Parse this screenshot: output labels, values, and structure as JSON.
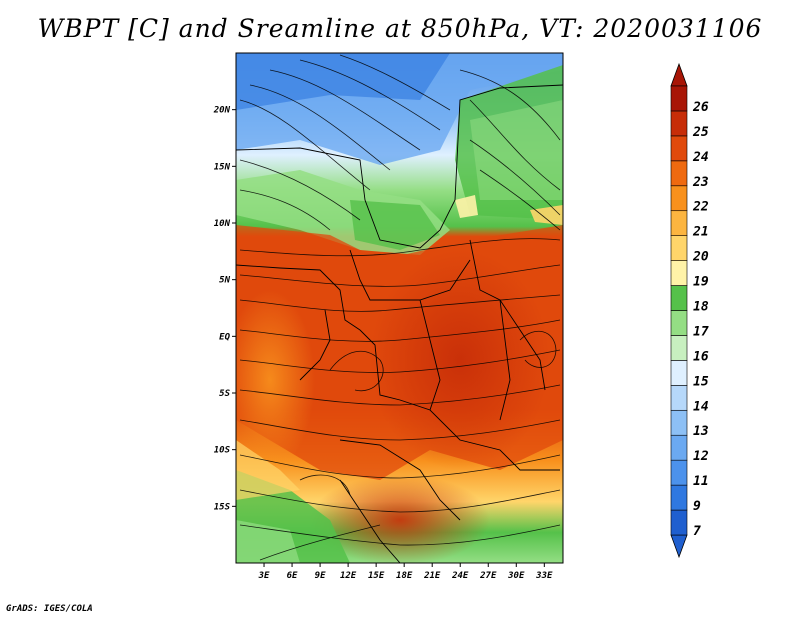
{
  "title": "WBPT [C] and Sreamline at 850hPa, VT: 2020031106",
  "footer": "GrADS: IGES/COLA",
  "map": {
    "lat_labels": [
      "20N",
      "15N",
      "10N",
      "5N",
      "EQ",
      "5S",
      "10S",
      "15S"
    ],
    "lat_values": [
      20,
      15,
      10,
      5,
      0,
      -5,
      -10,
      -15
    ],
    "lon_labels": [
      "3E",
      "6E",
      "9E",
      "12E",
      "15E",
      "18E",
      "21E",
      "24E",
      "27E",
      "30E",
      "33E"
    ],
    "lon_values": [
      3,
      6,
      9,
      12,
      15,
      18,
      21,
      24,
      27,
      30,
      33
    ],
    "lon_range": [
      0,
      35
    ],
    "lat_range": [
      -20,
      25
    ]
  },
  "colorbar": {
    "labels": [
      "7",
      "9",
      "11",
      "12",
      "13",
      "14",
      "15",
      "16",
      "17",
      "18",
      "19",
      "20",
      "21",
      "22",
      "23",
      "24",
      "25",
      "26"
    ],
    "colors": [
      "#1f5fcf",
      "#2f78e0",
      "#4c92ec",
      "#6ba9f1",
      "#8dc0f5",
      "#b6d8fa",
      "#dff0ff",
      "#c8f0c0",
      "#94de84",
      "#55c14a",
      "#fff3a8",
      "#ffd56a",
      "#fcb540",
      "#f8911d",
      "#ef6a10",
      "#e04a0c",
      "#c72d08",
      "#a81606"
    ],
    "under_color": "#1f5fcf",
    "over_color": "#a81606"
  }
}
